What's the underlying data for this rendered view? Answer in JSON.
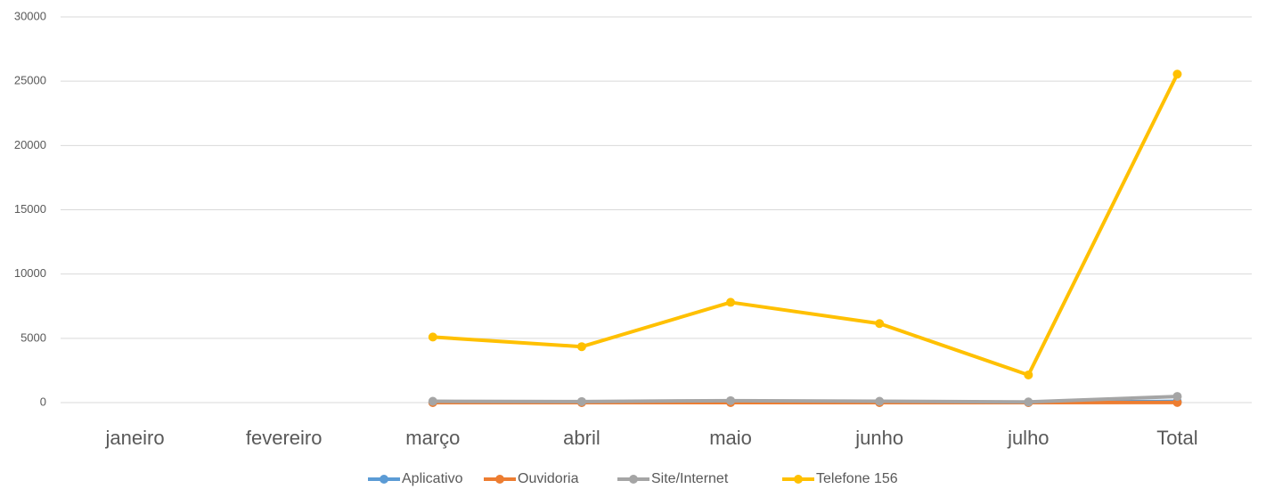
{
  "chart_data": {
    "type": "line",
    "categories": [
      "janeiro",
      "fevereiro",
      "março",
      "abril",
      "maio",
      "junho",
      "julho",
      "Total"
    ],
    "series": [
      {
        "name": "Aplicativo",
        "color": "#5b9bd5",
        "values": [
          null,
          null,
          20,
          15,
          30,
          20,
          10,
          95
        ]
      },
      {
        "name": "Ouvidoria",
        "color": "#ed7d31",
        "values": [
          null,
          null,
          2,
          1,
          3,
          2,
          1,
          9
        ]
      },
      {
        "name": "Site/Internet",
        "color": "#a5a5a5",
        "values": [
          null,
          null,
          100,
          80,
          150,
          100,
          50,
          480
        ]
      },
      {
        "name": "Telefone 156",
        "color": "#ffc000",
        "values": [
          null,
          null,
          5100,
          4350,
          7800,
          6150,
          2150,
          25550
        ]
      }
    ],
    "ylim": [
      0,
      30000
    ],
    "yticks": [
      0,
      5000,
      10000,
      15000,
      20000,
      25000,
      30000
    ],
    "grid": true,
    "legend": "bottom"
  }
}
